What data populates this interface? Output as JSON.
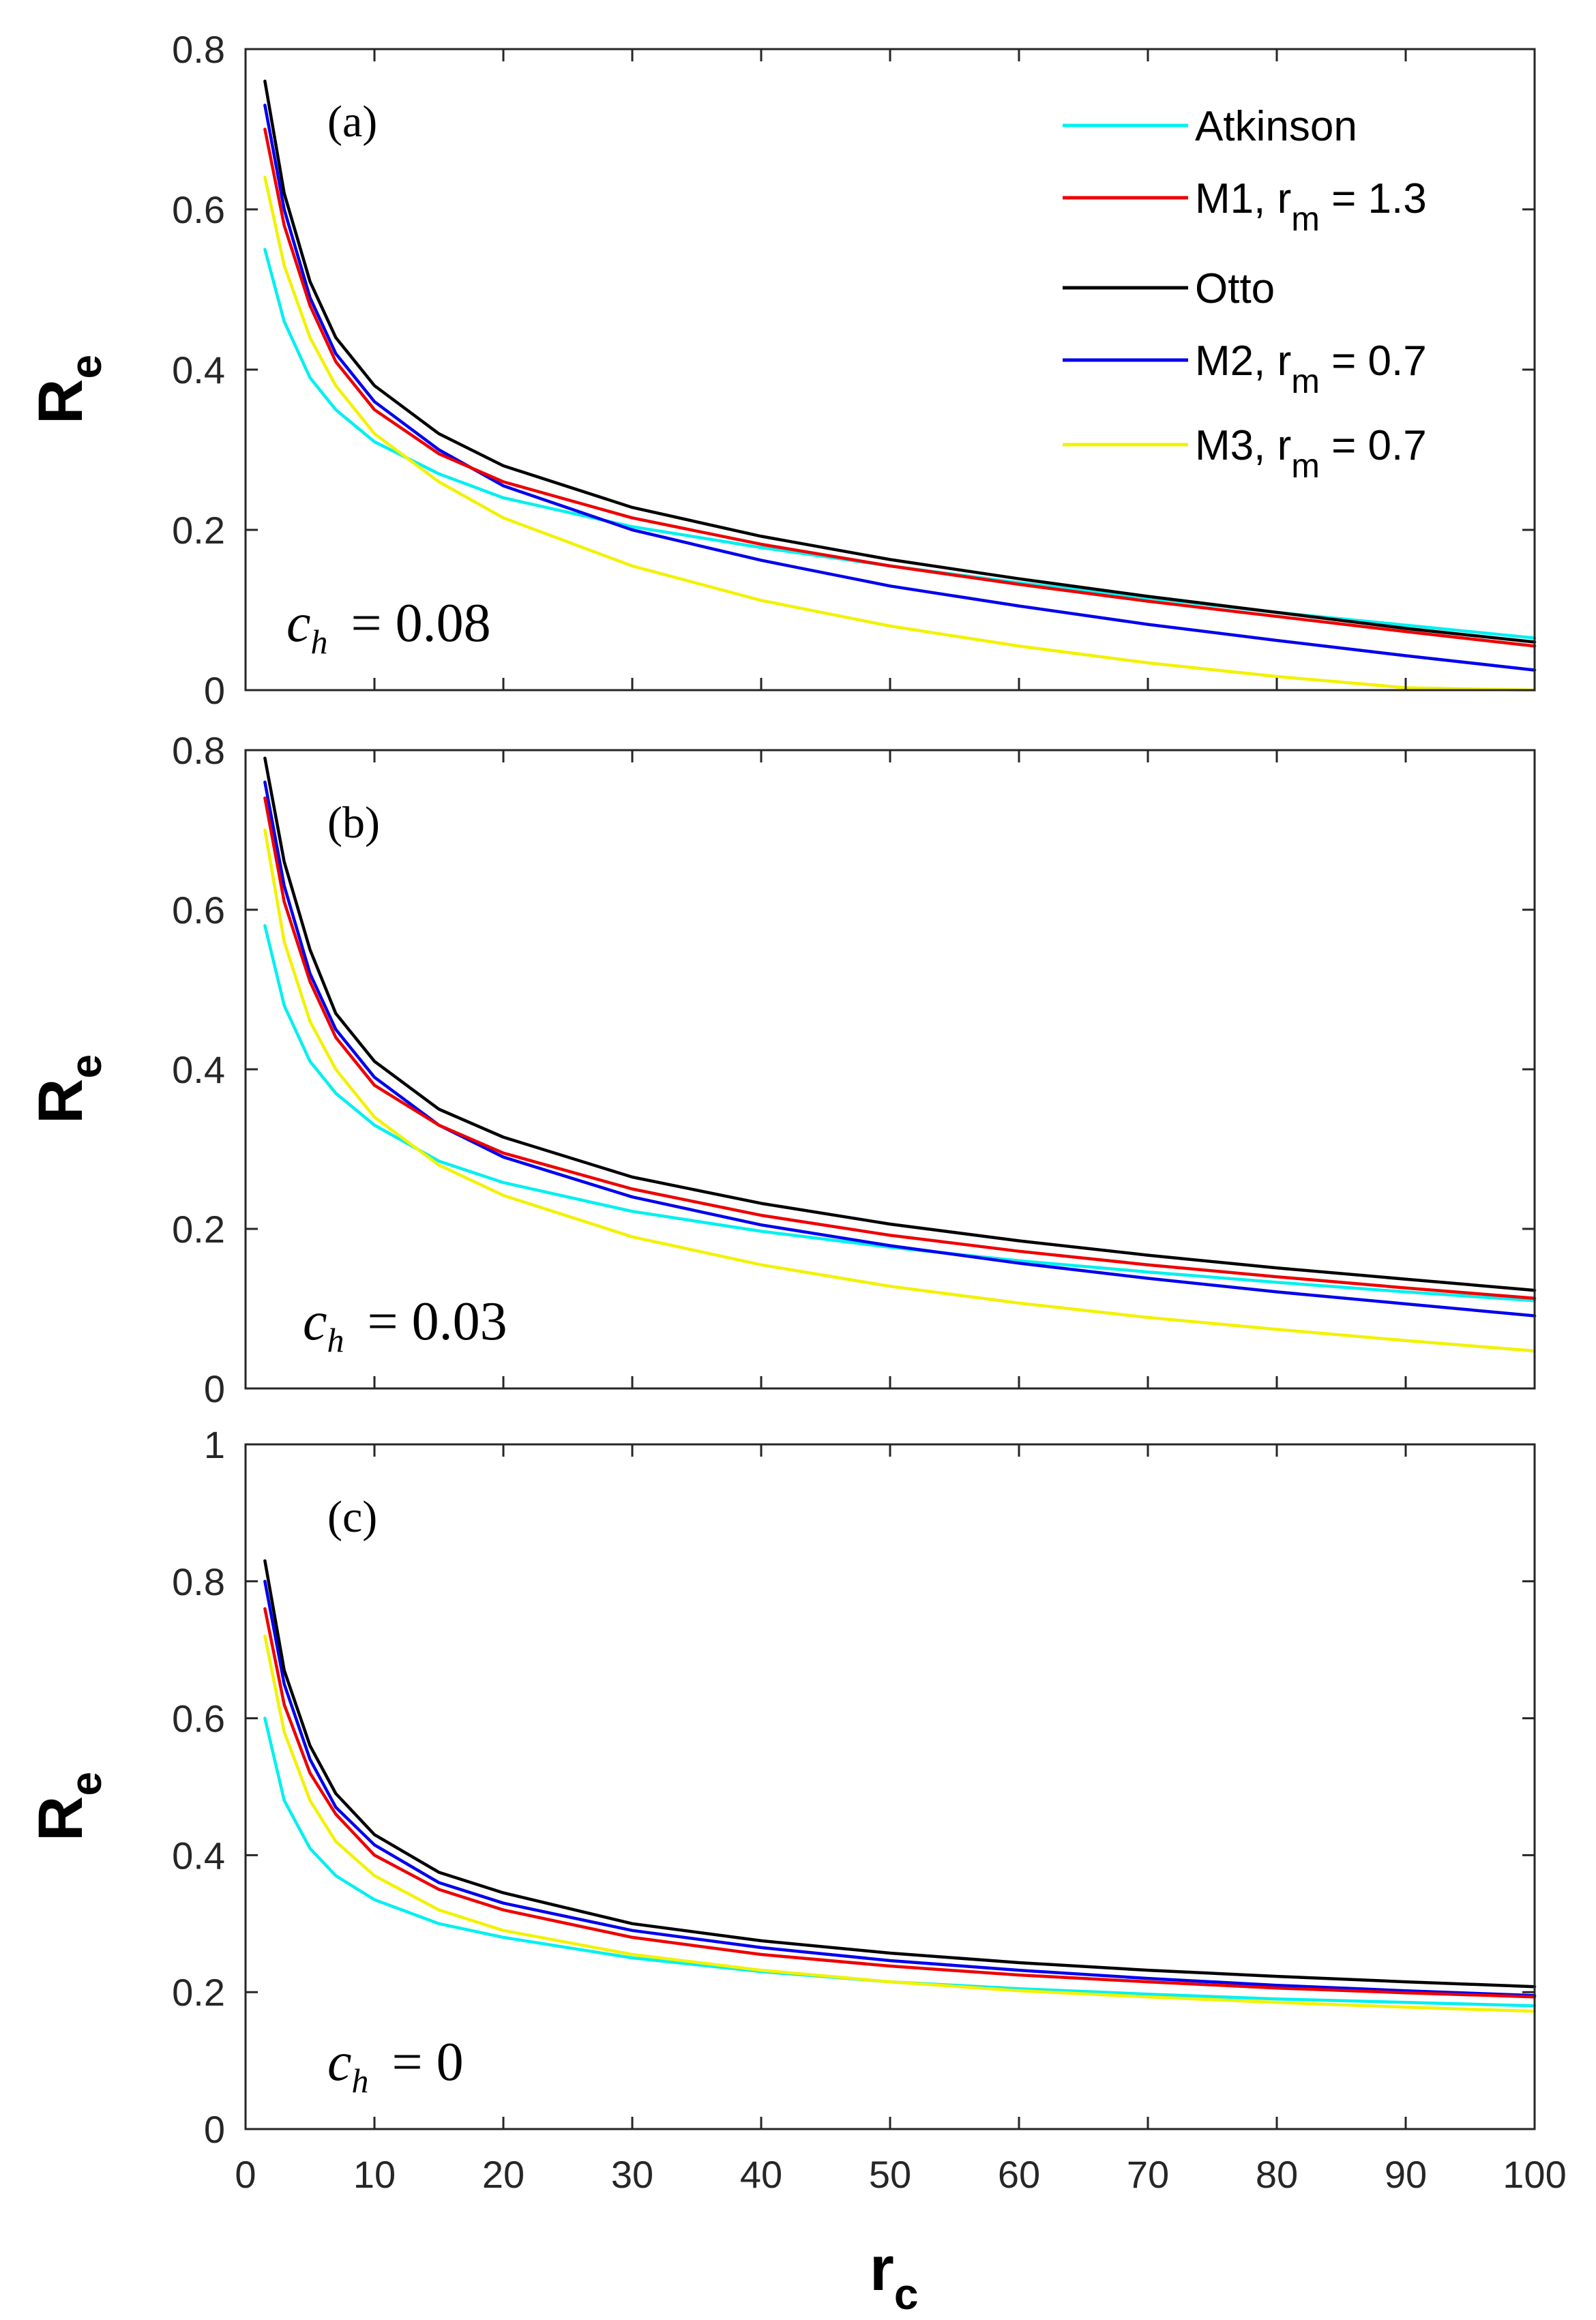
{
  "colors": {
    "Atkinson": "#00f0f0",
    "M1": "#ee0000",
    "Otto": "#000000",
    "M2": "#0000ee",
    "M3": "#f2f200"
  },
  "legend": [
    {
      "key": "Atkinson",
      "text": "Atkinson",
      "sub": "",
      "post": ""
    },
    {
      "key": "M1",
      "text": "M1, r",
      "sub": "m",
      "post": " = 1.3"
    },
    {
      "key": "Otto",
      "text": "Otto",
      "sub": "",
      "post": ""
    },
    {
      "key": "M2",
      "text": "M2, r",
      "sub": "m",
      "post": " = 0.7"
    },
    {
      "key": "M3",
      "text": "M3, r",
      "sub": "m",
      "post": " = 0.7"
    }
  ],
  "chart_data": [
    {
      "type": "line",
      "panel": "(a)",
      "annotation": {
        "var": "c",
        "sub": "h",
        "value": "= 0.08"
      },
      "xlabel": {
        "main": "r",
        "sub": "c"
      },
      "ylabel": {
        "main": "R",
        "sub": "e"
      },
      "xlim": [
        0,
        100
      ],
      "ylim": [
        0,
        0.8
      ],
      "xticks": [
        "0",
        "10",
        "20",
        "30",
        "40",
        "50",
        "60",
        "70",
        "80",
        "90",
        "100"
      ],
      "yticks": [
        "0",
        "0.2",
        "0.4",
        "0.6",
        "0.8"
      ],
      "x": [
        1.5,
        3,
        5,
        7,
        10,
        15,
        20,
        30,
        40,
        50,
        60,
        70,
        80,
        90,
        100
      ],
      "series": [
        {
          "name": "Atkinson",
          "values": [
            0.55,
            0.46,
            0.39,
            0.35,
            0.31,
            0.27,
            0.24,
            0.204,
            0.178,
            0.155,
            0.134,
            0.115,
            0.097,
            0.081,
            0.065
          ]
        },
        {
          "name": "M1",
          "values": [
            0.7,
            0.58,
            0.48,
            0.41,
            0.35,
            0.295,
            0.26,
            0.215,
            0.182,
            0.155,
            0.132,
            0.111,
            0.092,
            0.073,
            0.055
          ]
        },
        {
          "name": "Otto",
          "values": [
            0.76,
            0.62,
            0.51,
            0.44,
            0.38,
            0.32,
            0.28,
            0.228,
            0.192,
            0.163,
            0.139,
            0.117,
            0.097,
            0.077,
            0.06
          ]
        },
        {
          "name": "M2",
          "values": [
            0.73,
            0.6,
            0.49,
            0.42,
            0.36,
            0.3,
            0.255,
            0.2,
            0.162,
            0.13,
            0.105,
            0.082,
            0.062,
            0.043,
            0.025
          ]
        },
        {
          "name": "M3",
          "values": [
            0.64,
            0.53,
            0.44,
            0.38,
            0.32,
            0.26,
            0.215,
            0.155,
            0.112,
            0.08,
            0.055,
            0.034,
            0.017,
            0.003,
            0.0
          ]
        }
      ]
    },
    {
      "type": "line",
      "panel": "(b)",
      "annotation": {
        "var": "c",
        "sub": "h",
        "value": "= 0.03"
      },
      "xlabel": {
        "main": "r",
        "sub": "c"
      },
      "ylabel": {
        "main": "R",
        "sub": "e"
      },
      "xlim": [
        0,
        100
      ],
      "ylim": [
        0,
        0.8
      ],
      "xticks": [
        "0",
        "10",
        "20",
        "30",
        "40",
        "50",
        "60",
        "70",
        "80",
        "90",
        "100"
      ],
      "yticks": [
        "0",
        "0.2",
        "0.4",
        "0.6",
        "0.8"
      ],
      "x": [
        1.5,
        3,
        5,
        7,
        10,
        15,
        20,
        30,
        40,
        50,
        60,
        70,
        80,
        90,
        100
      ],
      "series": [
        {
          "name": "Atkinson",
          "values": [
            0.58,
            0.48,
            0.41,
            0.37,
            0.33,
            0.285,
            0.258,
            0.222,
            0.197,
            0.177,
            0.16,
            0.146,
            0.133,
            0.121,
            0.11
          ]
        },
        {
          "name": "M1",
          "values": [
            0.74,
            0.61,
            0.51,
            0.44,
            0.38,
            0.33,
            0.295,
            0.25,
            0.217,
            0.192,
            0.172,
            0.155,
            0.14,
            0.126,
            0.113
          ]
        },
        {
          "name": "Otto",
          "values": [
            0.79,
            0.66,
            0.55,
            0.47,
            0.41,
            0.35,
            0.315,
            0.265,
            0.232,
            0.206,
            0.185,
            0.167,
            0.151,
            0.137,
            0.123
          ]
        },
        {
          "name": "M2",
          "values": [
            0.76,
            0.63,
            0.52,
            0.45,
            0.39,
            0.33,
            0.29,
            0.24,
            0.205,
            0.179,
            0.157,
            0.138,
            0.121,
            0.106,
            0.091
          ]
        },
        {
          "name": "M3",
          "values": [
            0.7,
            0.56,
            0.46,
            0.4,
            0.34,
            0.28,
            0.242,
            0.19,
            0.155,
            0.128,
            0.107,
            0.089,
            0.074,
            0.06,
            0.047
          ]
        }
      ]
    },
    {
      "type": "line",
      "panel": "(c)",
      "annotation": {
        "var": "c",
        "sub": "h",
        "value": "= 0"
      },
      "xlabel": {
        "main": "r",
        "sub": "c"
      },
      "ylabel": {
        "main": "R",
        "sub": "e"
      },
      "xlim": [
        0,
        100
      ],
      "ylim": [
        0,
        1
      ],
      "xticks": [
        "0",
        "10",
        "20",
        "30",
        "40",
        "50",
        "60",
        "70",
        "80",
        "90",
        "100"
      ],
      "yticks": [
        "0",
        "0.2",
        "0.4",
        "0.6",
        "0.8",
        "1"
      ],
      "x": [
        1.5,
        3,
        5,
        7,
        10,
        15,
        20,
        30,
        40,
        50,
        60,
        70,
        80,
        90,
        100
      ],
      "series": [
        {
          "name": "Atkinson",
          "values": [
            0.6,
            0.48,
            0.41,
            0.37,
            0.335,
            0.3,
            0.28,
            0.25,
            0.23,
            0.215,
            0.205,
            0.197,
            0.19,
            0.185,
            0.18
          ]
        },
        {
          "name": "M1",
          "values": [
            0.76,
            0.62,
            0.52,
            0.46,
            0.4,
            0.35,
            0.32,
            0.28,
            0.255,
            0.238,
            0.225,
            0.215,
            0.206,
            0.199,
            0.193
          ]
        },
        {
          "name": "Otto",
          "values": [
            0.83,
            0.67,
            0.56,
            0.49,
            0.43,
            0.375,
            0.345,
            0.3,
            0.275,
            0.257,
            0.243,
            0.232,
            0.223,
            0.215,
            0.208
          ]
        },
        {
          "name": "M2",
          "values": [
            0.8,
            0.65,
            0.54,
            0.47,
            0.415,
            0.36,
            0.33,
            0.29,
            0.265,
            0.246,
            0.232,
            0.22,
            0.21,
            0.202,
            0.195
          ]
        },
        {
          "name": "M3",
          "values": [
            0.72,
            0.58,
            0.48,
            0.42,
            0.37,
            0.32,
            0.29,
            0.255,
            0.232,
            0.215,
            0.202,
            0.193,
            0.185,
            0.178,
            0.172
          ]
        }
      ]
    }
  ]
}
